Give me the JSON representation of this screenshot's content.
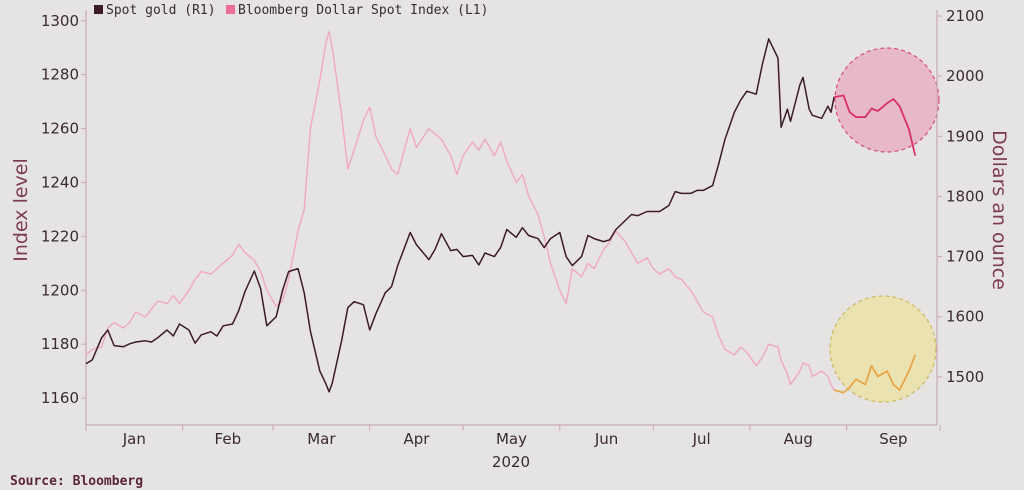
{
  "chart_data": {
    "type": "line",
    "x_axis": {
      "months": [
        "Jan",
        "Feb",
        "Mar",
        "Apr",
        "May",
        "Jun",
        "Jul",
        "Aug",
        "Sep"
      ],
      "year_label": "2020"
    },
    "y_left": {
      "label": "Index level",
      "ticks": [
        1160,
        1180,
        1200,
        1220,
        1240,
        1260,
        1280,
        1300
      ],
      "range": [
        1150,
        1304
      ]
    },
    "y_right": {
      "label": "Dollars an ounce",
      "ticks": [
        1500,
        1600,
        1700,
        1800,
        1900,
        2000,
        2100
      ],
      "range": [
        1420,
        2110
      ]
    },
    "legend": {
      "placement": "top-left"
    },
    "grid": false,
    "series": [
      {
        "name": "Spot gold (R1)",
        "axis": "right",
        "color": "#3b1a2a",
        "points": [
          [
            "2020-01-01",
            1522
          ],
          [
            "2020-01-03",
            1528
          ],
          [
            "2020-01-06",
            1565
          ],
          [
            "2020-01-08",
            1578
          ],
          [
            "2020-01-10",
            1552
          ],
          [
            "2020-01-13",
            1550
          ],
          [
            "2020-01-15",
            1555
          ],
          [
            "2020-01-17",
            1558
          ],
          [
            "2020-01-20",
            1560
          ],
          [
            "2020-01-22",
            1558
          ],
          [
            "2020-01-24",
            1565
          ],
          [
            "2020-01-27",
            1578
          ],
          [
            "2020-01-29",
            1568
          ],
          [
            "2020-01-31",
            1588
          ],
          [
            "2020-02-03",
            1578
          ],
          [
            "2020-02-05",
            1556
          ],
          [
            "2020-02-07",
            1570
          ],
          [
            "2020-02-10",
            1575
          ],
          [
            "2020-02-12",
            1568
          ],
          [
            "2020-02-14",
            1585
          ],
          [
            "2020-02-17",
            1588
          ],
          [
            "2020-02-19",
            1610
          ],
          [
            "2020-02-21",
            1642
          ],
          [
            "2020-02-24",
            1676
          ],
          [
            "2020-02-26",
            1647
          ],
          [
            "2020-02-28",
            1585
          ],
          [
            "2020-03-02",
            1600
          ],
          [
            "2020-03-04",
            1643
          ],
          [
            "2020-03-06",
            1675
          ],
          [
            "2020-03-09",
            1680
          ],
          [
            "2020-03-11",
            1640
          ],
          [
            "2020-03-13",
            1576
          ],
          [
            "2020-03-16",
            1510
          ],
          [
            "2020-03-18",
            1488
          ],
          [
            "2020-03-19",
            1475
          ],
          [
            "2020-03-20",
            1490
          ],
          [
            "2020-03-23",
            1560
          ],
          [
            "2020-03-25",
            1615
          ],
          [
            "2020-03-27",
            1625
          ],
          [
            "2020-03-30",
            1620
          ],
          [
            "2020-04-01",
            1578
          ],
          [
            "2020-04-03",
            1605
          ],
          [
            "2020-04-06",
            1640
          ],
          [
            "2020-04-08",
            1650
          ],
          [
            "2020-04-10",
            1685
          ],
          [
            "2020-04-14",
            1740
          ],
          [
            "2020-04-16",
            1720
          ],
          [
            "2020-04-20",
            1695
          ],
          [
            "2020-04-22",
            1712
          ],
          [
            "2020-04-24",
            1738
          ],
          [
            "2020-04-27",
            1710
          ],
          [
            "2020-04-29",
            1712
          ],
          [
            "2020-05-01",
            1700
          ],
          [
            "2020-05-04",
            1702
          ],
          [
            "2020-05-06",
            1686
          ],
          [
            "2020-05-08",
            1706
          ],
          [
            "2020-05-11",
            1700
          ],
          [
            "2020-05-13",
            1715
          ],
          [
            "2020-05-15",
            1745
          ],
          [
            "2020-05-18",
            1732
          ],
          [
            "2020-05-20",
            1748
          ],
          [
            "2020-05-22",
            1735
          ],
          [
            "2020-05-25",
            1730
          ],
          [
            "2020-05-27",
            1715
          ],
          [
            "2020-05-29",
            1730
          ],
          [
            "2020-06-01",
            1740
          ],
          [
            "2020-06-03",
            1700
          ],
          [
            "2020-06-05",
            1685
          ],
          [
            "2020-06-08",
            1700
          ],
          [
            "2020-06-10",
            1735
          ],
          [
            "2020-06-12",
            1730
          ],
          [
            "2020-06-15",
            1725
          ],
          [
            "2020-06-17",
            1728
          ],
          [
            "2020-06-19",
            1745
          ],
          [
            "2020-06-22",
            1760
          ],
          [
            "2020-06-24",
            1770
          ],
          [
            "2020-06-26",
            1768
          ],
          [
            "2020-06-29",
            1775
          ],
          [
            "2020-07-01",
            1775
          ],
          [
            "2020-07-03",
            1775
          ],
          [
            "2020-07-06",
            1785
          ],
          [
            "2020-07-08",
            1808
          ],
          [
            "2020-07-10",
            1805
          ],
          [
            "2020-07-13",
            1805
          ],
          [
            "2020-07-15",
            1810
          ],
          [
            "2020-07-17",
            1810
          ],
          [
            "2020-07-20",
            1818
          ],
          [
            "2020-07-22",
            1855
          ],
          [
            "2020-07-24",
            1895
          ],
          [
            "2020-07-27",
            1940
          ],
          [
            "2020-07-29",
            1960
          ],
          [
            "2020-07-31",
            1975
          ],
          [
            "2020-08-03",
            1970
          ],
          [
            "2020-08-05",
            2020
          ],
          [
            "2020-08-07",
            2062
          ],
          [
            "2020-08-10",
            2030
          ],
          [
            "2020-08-11",
            1915
          ],
          [
            "2020-08-13",
            1945
          ],
          [
            "2020-08-14",
            1925
          ],
          [
            "2020-08-17",
            1985
          ],
          [
            "2020-08-18",
            1998
          ],
          [
            "2020-08-20",
            1945
          ],
          [
            "2020-08-21",
            1935
          ],
          [
            "2020-08-24",
            1930
          ],
          [
            "2020-08-26",
            1950
          ],
          [
            "2020-08-27",
            1940
          ],
          [
            "2020-08-28",
            1965
          ],
          [
            "2020-08-31",
            1968
          ],
          [
            "2020-09-02",
            1940
          ],
          [
            "2020-09-04",
            1932
          ],
          [
            "2020-09-07",
            1932
          ],
          [
            "2020-09-09",
            1946
          ],
          [
            "2020-09-11",
            1942
          ],
          [
            "2020-09-14",
            1955
          ],
          [
            "2020-09-16",
            1962
          ],
          [
            "2020-09-18",
            1950
          ],
          [
            "2020-09-21",
            1912
          ],
          [
            "2020-09-23",
            1868
          ]
        ]
      },
      {
        "name": "Bloomberg Dollar Spot Index (L1)",
        "axis": "left",
        "color": "#f0a8c0",
        "points": [
          [
            "2020-01-01",
            1176
          ],
          [
            "2020-01-03",
            1178
          ],
          [
            "2020-01-06",
            1179
          ],
          [
            "2020-01-08",
            1186
          ],
          [
            "2020-01-10",
            1188
          ],
          [
            "2020-01-13",
            1186
          ],
          [
            "2020-01-15",
            1188
          ],
          [
            "2020-01-17",
            1192
          ],
          [
            "2020-01-20",
            1190
          ],
          [
            "2020-01-22",
            1193
          ],
          [
            "2020-01-24",
            1196
          ],
          [
            "2020-01-27",
            1195
          ],
          [
            "2020-01-29",
            1198
          ],
          [
            "2020-01-31",
            1195
          ],
          [
            "2020-02-03",
            1200
          ],
          [
            "2020-02-05",
            1204
          ],
          [
            "2020-02-07",
            1207
          ],
          [
            "2020-02-10",
            1206
          ],
          [
            "2020-02-12",
            1208
          ],
          [
            "2020-02-14",
            1210
          ],
          [
            "2020-02-17",
            1213
          ],
          [
            "2020-02-19",
            1217
          ],
          [
            "2020-02-21",
            1214
          ],
          [
            "2020-02-24",
            1211
          ],
          [
            "2020-02-26",
            1207
          ],
          [
            "2020-02-28",
            1200
          ],
          [
            "2020-03-02",
            1194
          ],
          [
            "2020-03-04",
            1196
          ],
          [
            "2020-03-06",
            1204
          ],
          [
            "2020-03-09",
            1222
          ],
          [
            "2020-03-11",
            1230
          ],
          [
            "2020-03-13",
            1260
          ],
          [
            "2020-03-16",
            1278
          ],
          [
            "2020-03-18",
            1292
          ],
          [
            "2020-03-19",
            1296
          ],
          [
            "2020-03-20",
            1290
          ],
          [
            "2020-03-23",
            1265
          ],
          [
            "2020-03-25",
            1245
          ],
          [
            "2020-03-27",
            1252
          ],
          [
            "2020-03-30",
            1263
          ],
          [
            "2020-04-01",
            1268
          ],
          [
            "2020-04-03",
            1257
          ],
          [
            "2020-04-06",
            1250
          ],
          [
            "2020-04-08",
            1245
          ],
          [
            "2020-04-10",
            1243
          ],
          [
            "2020-04-14",
            1260
          ],
          [
            "2020-04-16",
            1253
          ],
          [
            "2020-04-20",
            1260
          ],
          [
            "2020-04-22",
            1258
          ],
          [
            "2020-04-24",
            1256
          ],
          [
            "2020-04-27",
            1250
          ],
          [
            "2020-04-29",
            1243
          ],
          [
            "2020-05-01",
            1250
          ],
          [
            "2020-05-04",
            1255
          ],
          [
            "2020-05-06",
            1252
          ],
          [
            "2020-05-08",
            1256
          ],
          [
            "2020-05-11",
            1250
          ],
          [
            "2020-05-13",
            1255
          ],
          [
            "2020-05-15",
            1248
          ],
          [
            "2020-05-18",
            1240
          ],
          [
            "2020-05-20",
            1243
          ],
          [
            "2020-05-22",
            1235
          ],
          [
            "2020-05-25",
            1228
          ],
          [
            "2020-05-27",
            1220
          ],
          [
            "2020-05-29",
            1210
          ],
          [
            "2020-06-01",
            1200
          ],
          [
            "2020-06-03",
            1195
          ],
          [
            "2020-06-05",
            1208
          ],
          [
            "2020-06-08",
            1205
          ],
          [
            "2020-06-10",
            1210
          ],
          [
            "2020-06-12",
            1208
          ],
          [
            "2020-06-15",
            1215
          ],
          [
            "2020-06-17",
            1218
          ],
          [
            "2020-06-19",
            1222
          ],
          [
            "2020-06-22",
            1218
          ],
          [
            "2020-06-24",
            1214
          ],
          [
            "2020-06-26",
            1210
          ],
          [
            "2020-06-29",
            1212
          ],
          [
            "2020-07-01",
            1208
          ],
          [
            "2020-07-03",
            1206
          ],
          [
            "2020-07-06",
            1208
          ],
          [
            "2020-07-08",
            1205
          ],
          [
            "2020-07-10",
            1204
          ],
          [
            "2020-07-13",
            1200
          ],
          [
            "2020-07-15",
            1196
          ],
          [
            "2020-07-17",
            1192
          ],
          [
            "2020-07-20",
            1190
          ],
          [
            "2020-07-22",
            1183
          ],
          [
            "2020-07-24",
            1178
          ],
          [
            "2020-07-27",
            1176
          ],
          [
            "2020-07-29",
            1179
          ],
          [
            "2020-07-31",
            1177
          ],
          [
            "2020-08-03",
            1172
          ],
          [
            "2020-08-05",
            1175
          ],
          [
            "2020-08-07",
            1180
          ],
          [
            "2020-08-10",
            1179
          ],
          [
            "2020-08-11",
            1174
          ],
          [
            "2020-08-13",
            1169
          ],
          [
            "2020-08-14",
            1165
          ],
          [
            "2020-08-17",
            1170
          ],
          [
            "2020-08-18",
            1173
          ],
          [
            "2020-08-20",
            1172
          ],
          [
            "2020-08-21",
            1168
          ],
          [
            "2020-08-24",
            1170
          ],
          [
            "2020-08-26",
            1168
          ],
          [
            "2020-08-27",
            1165
          ],
          [
            "2020-08-28",
            1163
          ],
          [
            "2020-08-31",
            1162
          ],
          [
            "2020-09-02",
            1164
          ],
          [
            "2020-09-04",
            1167
          ],
          [
            "2020-09-07",
            1165
          ],
          [
            "2020-09-09",
            1172
          ],
          [
            "2020-09-11",
            1168
          ],
          [
            "2020-09-14",
            1170
          ],
          [
            "2020-09-16",
            1165
          ],
          [
            "2020-09-18",
            1163
          ],
          [
            "2020-09-21",
            1170
          ],
          [
            "2020-09-23",
            1176
          ]
        ]
      }
    ],
    "highlights": [
      {
        "series": "Spot gold (R1)",
        "color": "#e0306a",
        "fill": "#e896b6",
        "from": "2020-08-28",
        "to": "2020-09-23"
      },
      {
        "series": "Bloomberg Dollar Spot Index (L1)",
        "color": "#e8a23c",
        "fill": "#ece1a2",
        "from": "2020-08-28",
        "to": "2020-09-23"
      }
    ]
  },
  "legend_items": [
    {
      "label": "Spot gold (R1)",
      "color": "#3b1a2a"
    },
    {
      "label": "Bloomberg Dollar Spot Index (L1)",
      "color": "#ea6f98"
    }
  ],
  "source": "Source: Bloomberg"
}
